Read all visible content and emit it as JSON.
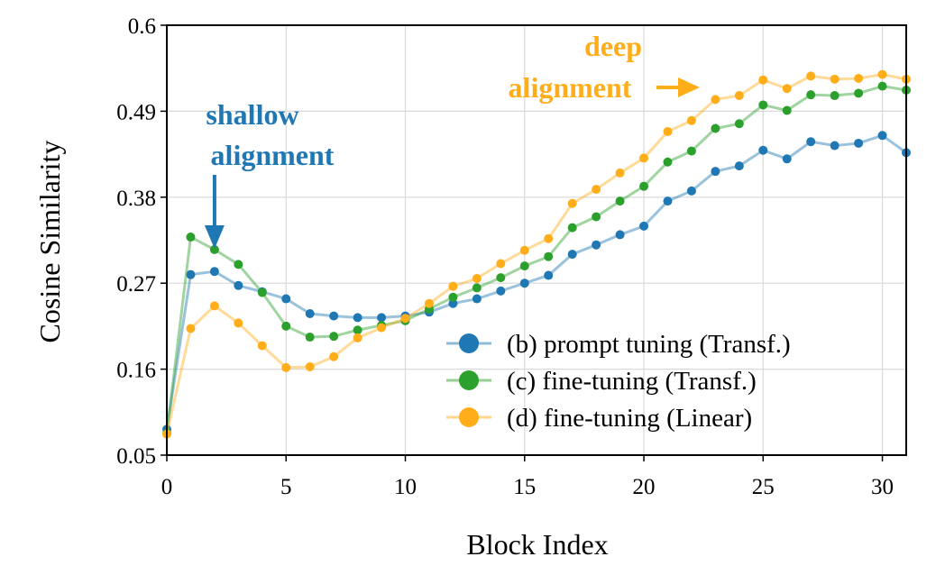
{
  "chart_data": {
    "type": "line",
    "title": "",
    "xlabel": "Block Index",
    "ylabel": "Cosine Similarity",
    "xlim": [
      0,
      31
    ],
    "ylim": [
      0.05,
      0.6
    ],
    "xticks": [
      "0",
      "5",
      "10",
      "15",
      "20",
      "25",
      "30"
    ],
    "xtick_values": [
      0,
      5,
      10,
      15,
      20,
      25,
      30
    ],
    "yticks": [
      "0.05",
      "0.16",
      "0.27",
      "0.38",
      "0.49",
      "0.6"
    ],
    "ytick_values": [
      0.05,
      0.16,
      0.27,
      0.38,
      0.49,
      0.6
    ],
    "grid": true,
    "legend_position": "lower-right",
    "x": [
      0,
      1,
      2,
      3,
      4,
      5,
      6,
      7,
      8,
      9,
      10,
      11,
      12,
      13,
      14,
      15,
      16,
      17,
      18,
      19,
      20,
      21,
      22,
      23,
      24,
      25,
      26,
      27,
      28,
      29,
      30,
      31
    ],
    "series": [
      {
        "name": "(b) prompt tuning (Transf.)",
        "color": "#1f77b4",
        "values": [
          0.083,
          0.281,
          0.285,
          0.267,
          0.259,
          0.25,
          0.231,
          0.228,
          0.226,
          0.226,
          0.228,
          0.233,
          0.244,
          0.25,
          0.26,
          0.27,
          0.28,
          0.307,
          0.319,
          0.332,
          0.343,
          0.375,
          0.388,
          0.413,
          0.42,
          0.44,
          0.429,
          0.451,
          0.446,
          0.449,
          0.459,
          0.437
        ]
      },
      {
        "name": "(c) fine-tuning (Transf.)",
        "color": "#2ca02c",
        "values": [
          0.078,
          0.329,
          0.313,
          0.294,
          0.258,
          0.215,
          0.201,
          0.202,
          0.21,
          0.216,
          0.222,
          0.237,
          0.252,
          0.264,
          0.277,
          0.292,
          0.304,
          0.341,
          0.355,
          0.375,
          0.394,
          0.425,
          0.439,
          0.468,
          0.474,
          0.498,
          0.491,
          0.511,
          0.51,
          0.513,
          0.522,
          0.517
        ]
      },
      {
        "name": "(d) fine-tuning (Linear)",
        "color": "#ffae1a",
        "values": [
          0.077,
          0.212,
          0.241,
          0.219,
          0.19,
          0.162,
          0.163,
          0.176,
          0.2,
          0.213,
          0.225,
          0.244,
          0.266,
          0.276,
          0.295,
          0.312,
          0.327,
          0.372,
          0.39,
          0.411,
          0.43,
          0.464,
          0.478,
          0.505,
          0.51,
          0.53,
          0.519,
          0.535,
          0.531,
          0.532,
          0.537,
          0.531
        ]
      }
    ],
    "annotations": [
      {
        "lines": [
          "shallow",
          "alignment"
        ],
        "color": "#1f77b4",
        "points_to_x": 2
      },
      {
        "lines": [
          "deep",
          "alignment"
        ],
        "color": "#ffae1a",
        "points_to_x": 22
      }
    ]
  }
}
